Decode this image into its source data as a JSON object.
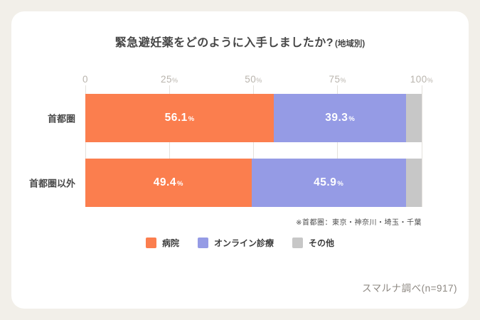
{
  "title": {
    "main": "緊急避妊薬をどのように入手しましたか?",
    "note": "(地域別)"
  },
  "footnote": "※首都圏：東京・神奈川・埼玉・千葉",
  "source": "スマルナ調べ(n=917)",
  "colors": {
    "background": "#F2EFE9",
    "card": "#FFFFFF",
    "gridline": "#E4E1DC",
    "axis_text": "#B9B4AD"
  },
  "chart_data": {
    "type": "bar",
    "orientation": "horizontal",
    "stacked": true,
    "title": "緊急避妊薬をどのように入手しましたか?(地域別)",
    "categories": [
      "首都圏",
      "首都圏以外"
    ],
    "series": [
      {
        "name": "病院",
        "color": "#FB7E4E",
        "values": [
          56.1,
          49.4
        ],
        "label_visible": true
      },
      {
        "name": "オンライン診療",
        "color": "#959BE5",
        "values": [
          39.3,
          45.9
        ],
        "label_visible": true
      },
      {
        "name": "その他",
        "color": "#C7C7C7",
        "values": [
          4.6,
          4.7
        ],
        "label_visible": false
      }
    ],
    "x_ticks": [
      0,
      25,
      50,
      75,
      100
    ],
    "x_range": [
      0,
      100
    ],
    "unit": "%",
    "grid": true,
    "legend_position": "bottom",
    "value_label_color": "#FFFFFF"
  }
}
